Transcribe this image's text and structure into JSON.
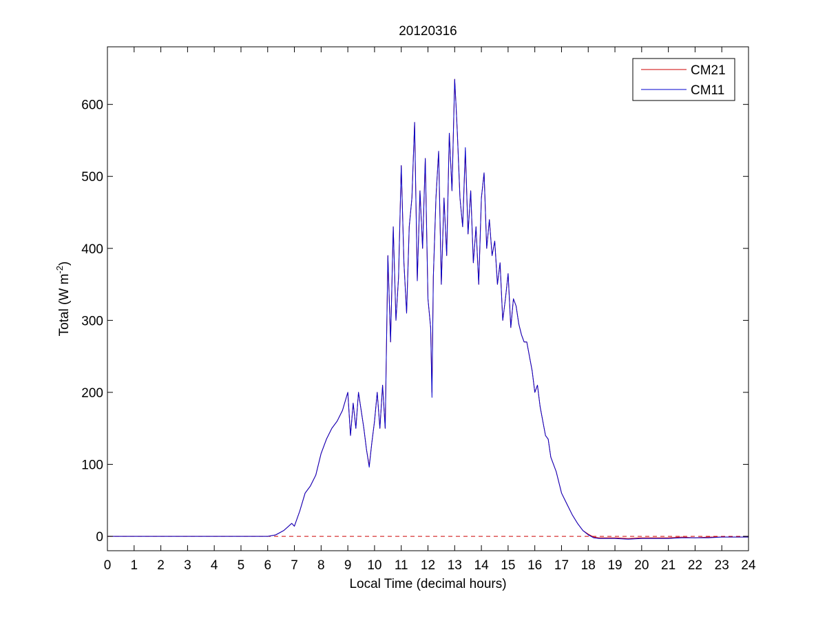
{
  "chart_data": {
    "type": "line",
    "title": "20120316",
    "xlabel": "Local Time (decimal hours)",
    "ylabel": {
      "prefix": "Total (W m",
      "superscript": "-2",
      "suffix": ")"
    },
    "xlim": [
      0,
      24
    ],
    "ylim": [
      -20,
      680
    ],
    "xticks": [
      0,
      1,
      2,
      3,
      4,
      5,
      6,
      7,
      8,
      9,
      10,
      11,
      12,
      13,
      14,
      15,
      16,
      17,
      18,
      19,
      20,
      21,
      22,
      23,
      24
    ],
    "yticks": [
      0,
      100,
      200,
      300,
      400,
      500,
      600
    ],
    "grid": false,
    "legend": {
      "placement": "top-right",
      "entries": [
        "CM21",
        "CM11"
      ]
    },
    "reference_line": {
      "y": 0,
      "style": "dashed",
      "color": "#cc0000"
    },
    "series": [
      {
        "name": "CM21",
        "color": "#cc0000",
        "x": [
          0,
          6.0,
          6.3,
          6.6,
          6.9,
          7.0,
          7.2,
          7.4,
          7.6,
          7.8,
          8.0,
          8.2,
          8.4,
          8.6,
          8.8,
          9.0,
          9.1,
          9.2,
          9.3,
          9.4,
          9.5,
          9.6,
          9.7,
          9.8,
          9.9,
          10.0,
          10.1,
          10.2,
          10.3,
          10.4,
          10.5,
          10.6,
          10.7,
          10.8,
          10.9,
          11.0,
          11.1,
          11.2,
          11.3,
          11.4,
          11.5,
          11.6,
          11.7,
          11.8,
          11.9,
          12.0,
          12.1,
          12.15,
          12.2,
          12.3,
          12.4,
          12.5,
          12.6,
          12.7,
          12.8,
          12.9,
          13.0,
          13.05,
          13.1,
          13.2,
          13.3,
          13.4,
          13.5,
          13.6,
          13.7,
          13.8,
          13.9,
          14.0,
          14.1,
          14.2,
          14.3,
          14.4,
          14.5,
          14.6,
          14.7,
          14.8,
          14.9,
          15.0,
          15.1,
          15.2,
          15.3,
          15.4,
          15.5,
          15.6,
          15.7,
          15.8,
          15.9,
          16.0,
          16.1,
          16.2,
          16.3,
          16.4,
          16.5,
          16.6,
          16.8,
          17.0,
          17.2,
          17.4,
          17.6,
          17.8,
          18.0,
          18.2,
          18.4,
          18.6,
          19.0,
          19.5,
          20.0,
          20.5,
          21.0,
          21.5,
          22.0,
          22.5,
          23.0,
          23.5,
          24.0
        ],
        "y": [
          0,
          0,
          2,
          8,
          18,
          14,
          35,
          60,
          70,
          85,
          115,
          135,
          150,
          160,
          175,
          200,
          140,
          185,
          150,
          200,
          175,
          150,
          120,
          98,
          130,
          160,
          200,
          150,
          210,
          150,
          390,
          270,
          430,
          300,
          360,
          515,
          380,
          310,
          430,
          470,
          575,
          355,
          480,
          400,
          525,
          330,
          290,
          200,
          360,
          470,
          535,
          350,
          470,
          390,
          560,
          480,
          635,
          600,
          560,
          470,
          430,
          535,
          420,
          480,
          380,
          430,
          350,
          470,
          505,
          400,
          440,
          390,
          410,
          350,
          380,
          300,
          330,
          365,
          290,
          330,
          320,
          295,
          280,
          270,
          270,
          250,
          230,
          200,
          210,
          180,
          160,
          140,
          135,
          110,
          90,
          60,
          45,
          30,
          18,
          8,
          3,
          -1,
          -2,
          -2,
          -2,
          -3,
          -2,
          -2,
          -2,
          -1,
          -2,
          -1,
          -1,
          -1,
          -1
        ]
      },
      {
        "name": "CM11",
        "color": "#0000cc",
        "x": [
          0,
          6.0,
          6.3,
          6.6,
          6.9,
          7.0,
          7.2,
          7.4,
          7.6,
          7.8,
          8.0,
          8.2,
          8.4,
          8.6,
          8.8,
          9.0,
          9.1,
          9.2,
          9.3,
          9.4,
          9.5,
          9.6,
          9.7,
          9.8,
          9.9,
          10.0,
          10.1,
          10.2,
          10.3,
          10.4,
          10.5,
          10.6,
          10.7,
          10.8,
          10.9,
          11.0,
          11.1,
          11.2,
          11.3,
          11.4,
          11.5,
          11.6,
          11.7,
          11.8,
          11.9,
          12.0,
          12.1,
          12.15,
          12.2,
          12.3,
          12.4,
          12.5,
          12.6,
          12.7,
          12.8,
          12.9,
          13.0,
          13.05,
          13.1,
          13.2,
          13.3,
          13.4,
          13.5,
          13.6,
          13.7,
          13.8,
          13.9,
          14.0,
          14.1,
          14.2,
          14.3,
          14.4,
          14.5,
          14.6,
          14.7,
          14.8,
          14.9,
          15.0,
          15.1,
          15.2,
          15.3,
          15.4,
          15.5,
          15.6,
          15.7,
          15.8,
          15.9,
          16.0,
          16.1,
          16.2,
          16.3,
          16.4,
          16.5,
          16.6,
          16.8,
          17.0,
          17.2,
          17.4,
          17.6,
          17.8,
          18.0,
          18.2,
          18.4,
          18.6,
          19.0,
          19.5,
          20.0,
          20.5,
          21.0,
          21.5,
          22.0,
          22.5,
          23.0,
          23.5,
          24.0
        ],
        "y": [
          0,
          0,
          2,
          8,
          18,
          14,
          35,
          60,
          70,
          85,
          115,
          135,
          150,
          160,
          175,
          200,
          140,
          185,
          150,
          200,
          175,
          150,
          120,
          96,
          130,
          160,
          200,
          150,
          210,
          150,
          390,
          270,
          430,
          300,
          360,
          515,
          380,
          310,
          430,
          470,
          575,
          355,
          480,
          400,
          525,
          330,
          290,
          193,
          360,
          470,
          535,
          350,
          470,
          390,
          560,
          480,
          635,
          600,
          560,
          470,
          430,
          540,
          420,
          480,
          380,
          430,
          350,
          470,
          505,
          400,
          440,
          390,
          410,
          350,
          380,
          300,
          330,
          365,
          290,
          330,
          320,
          295,
          280,
          270,
          270,
          250,
          230,
          200,
          210,
          180,
          160,
          140,
          135,
          110,
          90,
          60,
          45,
          30,
          18,
          8,
          2,
          -2,
          -3,
          -3,
          -3,
          -4,
          -3,
          -3,
          -3,
          -2,
          -2,
          -2,
          -1,
          -1,
          -1
        ]
      }
    ]
  }
}
